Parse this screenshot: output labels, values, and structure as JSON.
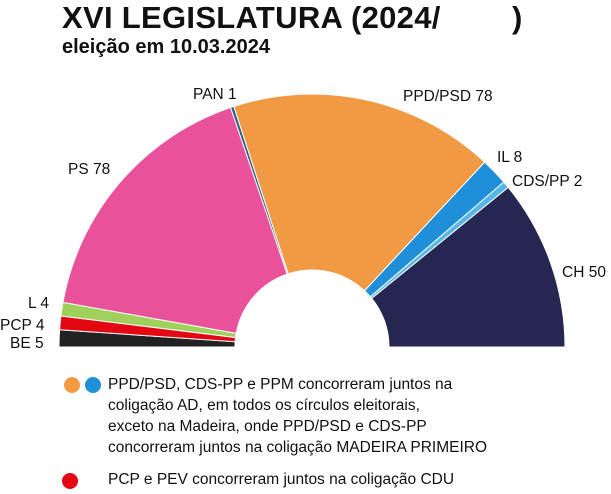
{
  "header": {
    "title": "XVI LEGISLATURA (2024/        )",
    "subtitle": "eleição em 10.03.2024"
  },
  "chart_data": {
    "type": "pie",
    "layout": "parliament-semicircle",
    "total_seats": 230,
    "series": [
      {
        "name": "BE",
        "label": "BE 5",
        "value": 5,
        "color": "#222222"
      },
      {
        "name": "PCP",
        "label": "PCP 4",
        "value": 4,
        "color": "#e30613"
      },
      {
        "name": "L",
        "label": "L 4",
        "value": 4,
        "color": "#9fd05c"
      },
      {
        "name": "PS",
        "label": "PS 78",
        "value": 78,
        "color": "#e9529b"
      },
      {
        "name": "PAN",
        "label": "PAN 1",
        "value": 1,
        "color": "#2c5f8a"
      },
      {
        "name": "PPD/PSD",
        "label": "PPD/PSD 78",
        "value": 78,
        "color": "#f29a43"
      },
      {
        "name": "IL",
        "label": "IL 8",
        "value": 8,
        "color": "#1e8fd8"
      },
      {
        "name": "CDS/PP",
        "label": "CDS/PP 2",
        "value": 2,
        "color": "#57b6e8"
      },
      {
        "name": "CH",
        "label": "CH 50",
        "value": 50,
        "color": "#262652"
      }
    ]
  },
  "notes": [
    {
      "dots": [
        "#f29a43",
        "#1e8fd8"
      ],
      "lines": [
        "PPD/PSD, CDS-PP e PPM concorreram juntos na",
        "coligação AD, em todos os círculos eleitorais,",
        "exceto na Madeira, onde PPD/PSD e CDS-PP",
        "concorreram juntos na coligação MADEIRA PRIMEIRO"
      ]
    },
    {
      "dots": [
        "#e30613"
      ],
      "lines": [
        "PCP e PEV concorreram juntos na coligação CDU"
      ]
    }
  ]
}
